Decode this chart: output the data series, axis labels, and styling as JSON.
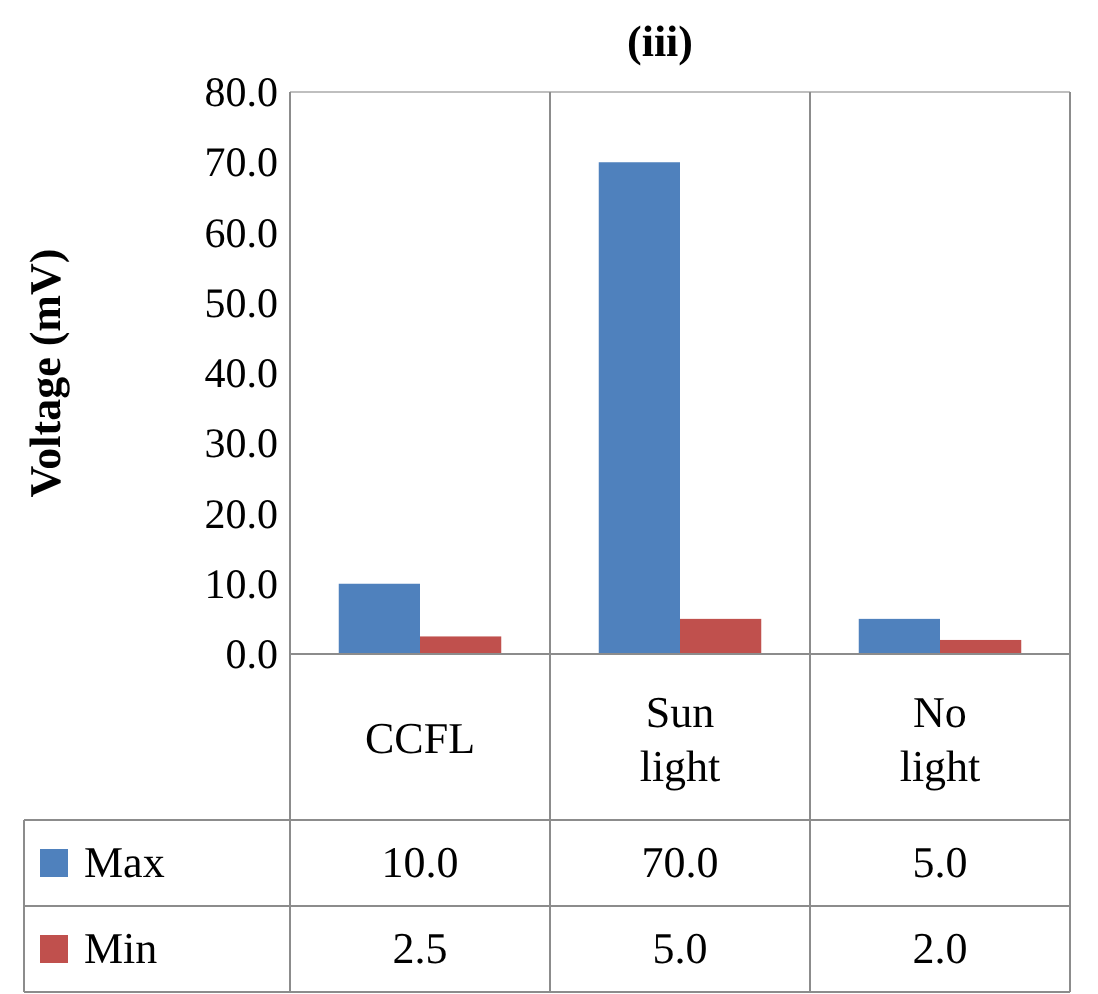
{
  "chart_data": {
    "type": "bar",
    "title": "(iii)",
    "ylabel": "Voltage (mV)",
    "categories": [
      "CCFL",
      "Sun light",
      "No light"
    ],
    "series": [
      {
        "name": "Max",
        "color": "#4f81bd",
        "values": [
          10.0,
          70.0,
          5.0
        ],
        "value_labels": [
          "10.0",
          "70.0",
          "5.0"
        ]
      },
      {
        "name": "Min",
        "color": "#c0504d",
        "values": [
          2.5,
          5.0,
          2.0
        ],
        "value_labels": [
          "2.5",
          "5.0",
          "2.0"
        ]
      }
    ],
    "ylim": [
      0,
      80
    ],
    "yticks": [
      {
        "value": 0,
        "label": "0.0"
      },
      {
        "value": 10,
        "label": "10.0"
      },
      {
        "value": 20,
        "label": "20.0"
      },
      {
        "value": 30,
        "label": "30.0"
      },
      {
        "value": 40,
        "label": "40.0"
      },
      {
        "value": 50,
        "label": "50.0"
      },
      {
        "value": 60,
        "label": "60.0"
      },
      {
        "value": 70,
        "label": "70.0"
      },
      {
        "value": 80,
        "label": "80.0"
      }
    ],
    "legend": "bottom left"
  }
}
